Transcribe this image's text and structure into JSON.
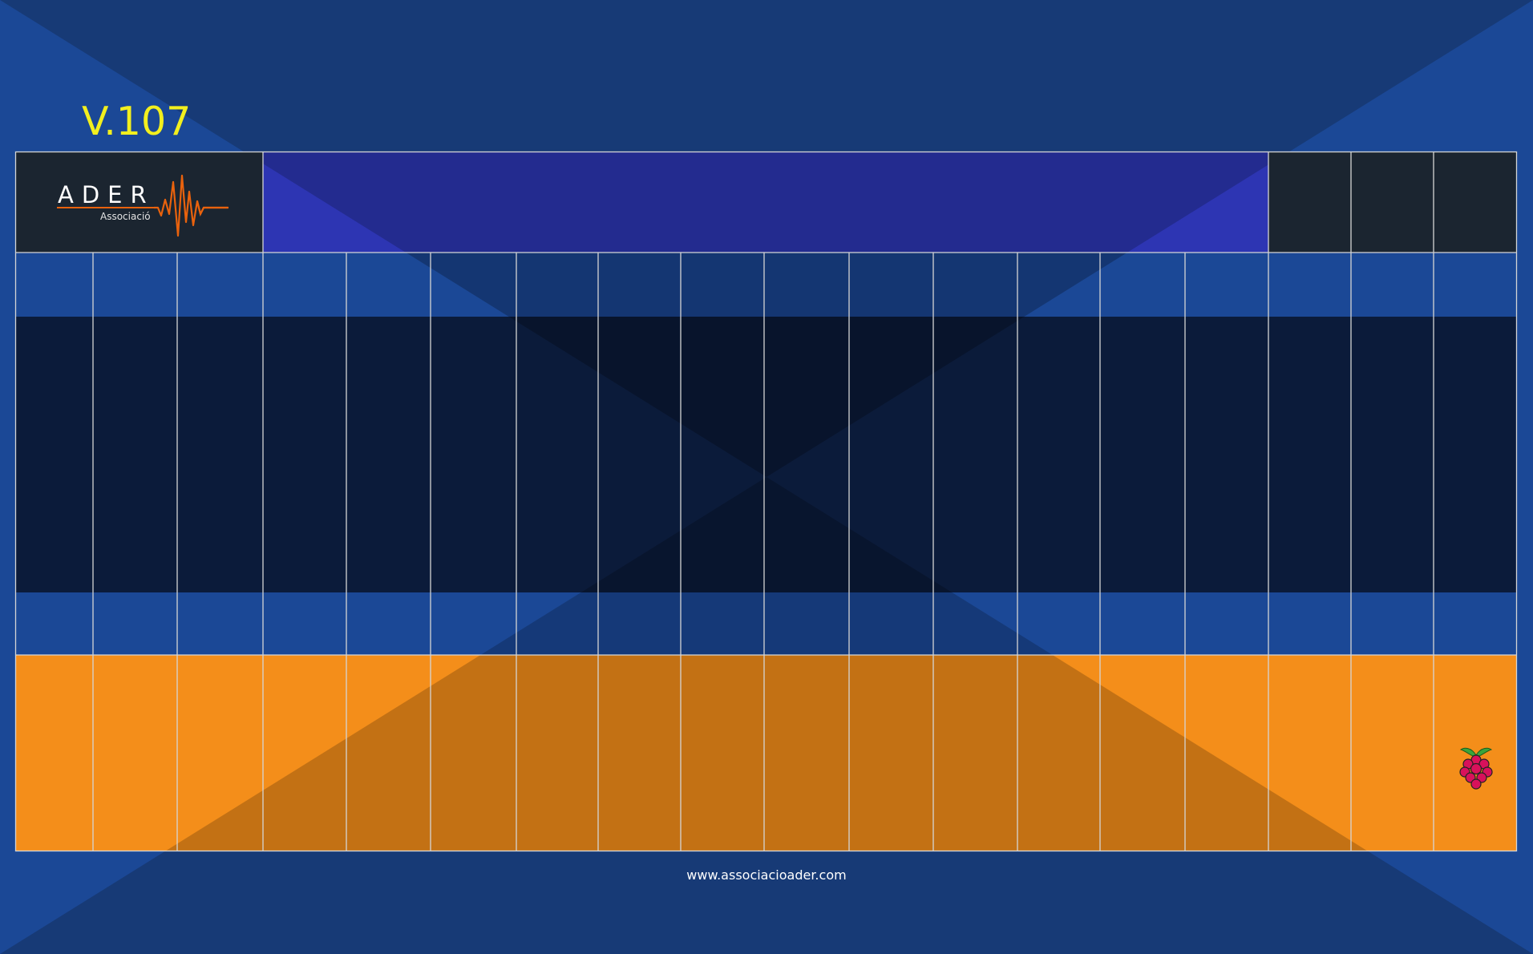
{
  "version_label": "V.107",
  "logo": {
    "name": "ADER",
    "subtitle": "Associació"
  },
  "footer": {
    "url": "www.associacioader.com"
  },
  "colors": {
    "background": "#173a76",
    "background_light": "#1b4896",
    "header_band": "#232b8f",
    "header_band_light": "#2d35b3",
    "dark_panel": "#1b2530",
    "light_row": "#1b4896",
    "dark_rows": "#0b1b3a",
    "orange_rows": "#f48e1a",
    "orange_dark": "#c47215",
    "version_text": "#f2ef1e",
    "grid_line": "#d5d5d5",
    "logo_orange": "#e9620d"
  },
  "icons": {
    "logo": "ader-logo",
    "status": "raspberry-pi-icon"
  },
  "grid": {
    "columns": 18,
    "bands": [
      "header",
      "light-row",
      "dark-rows",
      "light-row",
      "orange-rows"
    ]
  }
}
